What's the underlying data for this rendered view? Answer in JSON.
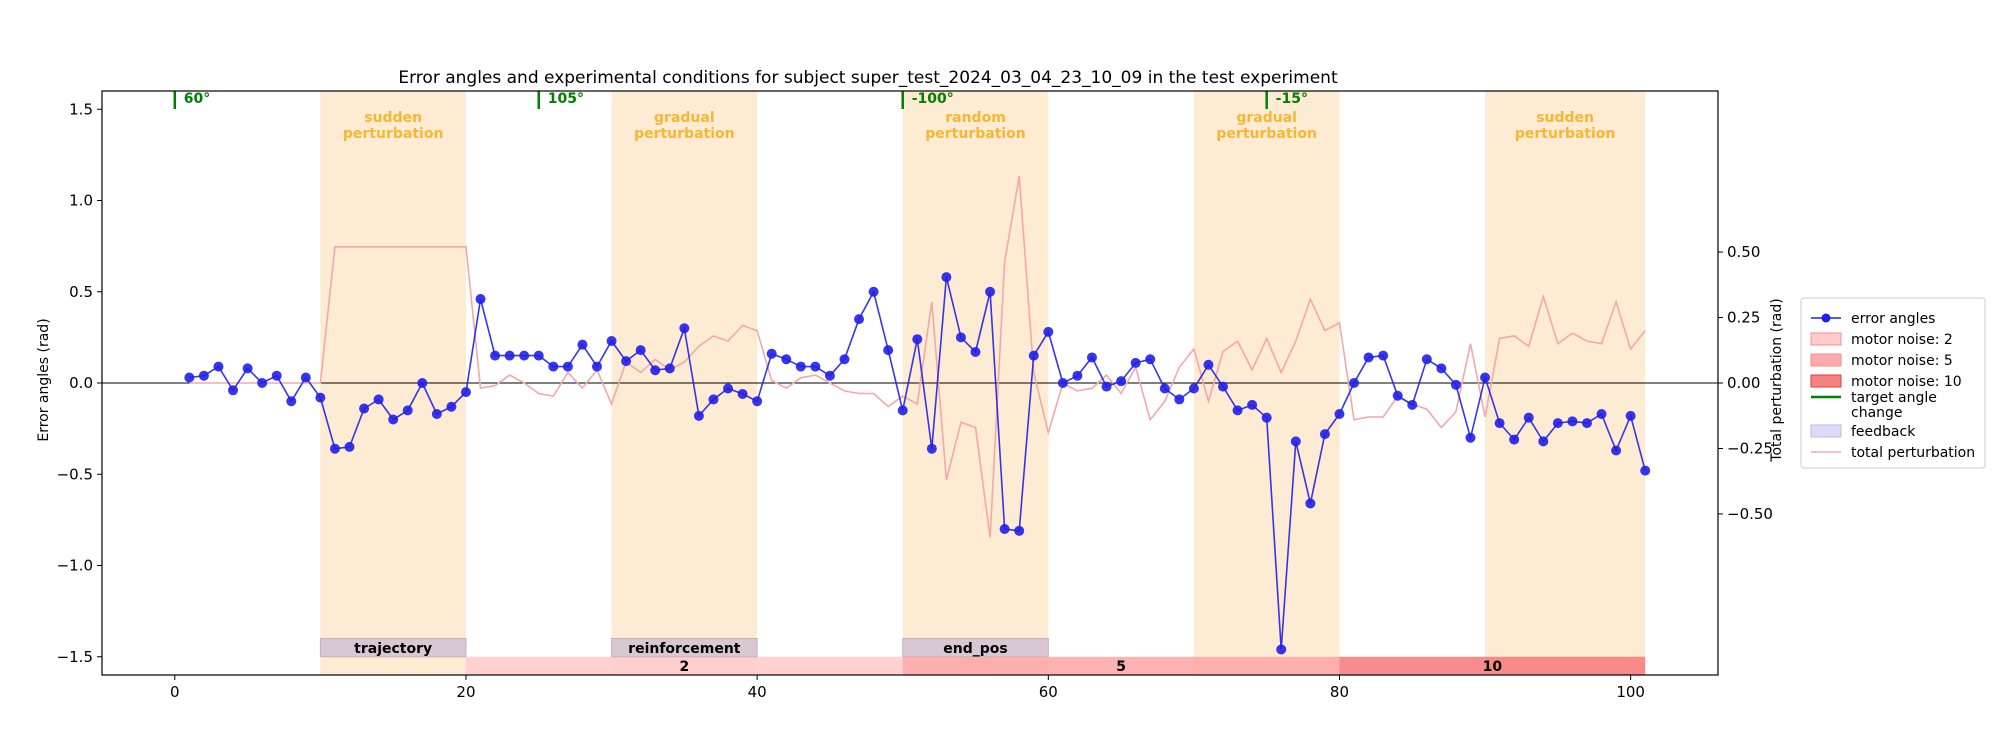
{
  "chart_data": {
    "type": "line",
    "title": "Error angles and experimental conditions for subject super_test_2024_03_04_23_10_09 in the test experiment",
    "xlabel": "",
    "ylabel": "Error angles (rad)",
    "y2label": "Total perturbation (rad)",
    "xlim": [
      -5,
      106
    ],
    "ylim": [
      -1.6,
      1.6
    ],
    "y2lim": [
      -1.115,
      1.115
    ],
    "xticks": [
      0,
      20,
      40,
      60,
      80,
      100
    ],
    "yticks": [
      -1.5,
      -1.0,
      -0.5,
      0.0,
      0.5,
      1.0,
      1.5
    ],
    "y2ticks": [
      -0.5,
      -0.25,
      0.0,
      0.25,
      0.5
    ],
    "grid": false,
    "legend_position": "outside right",
    "colors": {
      "error": "#2020e8",
      "perturbation": "#f4a8a8",
      "perturbation_band": "#fdebd3",
      "perturbation_text": "#f7b733",
      "target": "#008000",
      "feedback_fill": "#d8c8d4",
      "noise2": "#ffcccc",
      "noise5": "#ffaaaa",
      "noise10": "#f78080"
    },
    "series": [
      {
        "name": "error angles",
        "x": [
          1,
          2,
          3,
          4,
          5,
          6,
          7,
          8,
          9,
          10,
          11,
          12,
          13,
          14,
          15,
          16,
          17,
          18,
          19,
          20,
          21,
          22,
          23,
          24,
          25,
          26,
          27,
          28,
          29,
          30,
          31,
          32,
          33,
          34,
          35,
          36,
          37,
          38,
          39,
          40,
          41,
          42,
          43,
          44,
          45,
          46,
          47,
          48,
          49,
          50,
          51,
          52,
          53,
          54,
          55,
          56,
          57,
          58,
          59,
          60,
          61,
          62,
          63,
          64,
          65,
          66,
          67,
          68,
          69,
          70,
          71,
          72,
          73,
          74,
          75,
          76,
          77,
          78,
          79,
          80,
          81,
          82,
          83,
          84,
          85,
          86,
          87,
          88,
          89,
          90,
          91,
          92,
          93,
          94,
          95,
          96,
          97,
          98,
          99,
          100,
          101
        ],
        "values": [
          0.03,
          0.04,
          0.09,
          -0.04,
          0.08,
          0.0,
          0.04,
          -0.1,
          0.03,
          -0.08,
          -0.36,
          -0.35,
          -0.14,
          -0.09,
          -0.2,
          -0.15,
          0.0,
          -0.17,
          -0.13,
          -0.05,
          0.46,
          0.15,
          0.15,
          0.15,
          0.15,
          0.09,
          0.09,
          0.21,
          0.09,
          0.23,
          0.12,
          0.18,
          0.07,
          0.08,
          0.3,
          -0.18,
          -0.09,
          -0.03,
          -0.06,
          -0.1,
          0.16,
          0.13,
          0.09,
          0.09,
          0.04,
          0.13,
          0.35,
          0.5,
          0.18,
          -0.15,
          0.24,
          -0.36,
          0.58,
          0.25,
          0.17,
          0.5,
          -0.8,
          -0.81,
          0.15,
          0.28,
          0.0,
          0.04,
          0.14,
          -0.02,
          0.01,
          0.11,
          0.13,
          -0.03,
          -0.09,
          -0.03,
          0.1,
          -0.02,
          -0.15,
          -0.12,
          -0.19,
          -1.46,
          -0.32,
          -0.66,
          -0.28,
          -0.17,
          0.0,
          0.14,
          0.15,
          -0.07,
          -0.12,
          0.13,
          0.08,
          -0.01,
          -0.3,
          0.03,
          -0.22,
          -0.31,
          -0.19,
          -0.32,
          -0.22,
          -0.21,
          -0.22,
          -0.17,
          -0.37,
          -0.18,
          -0.48
        ]
      },
      {
        "name": "total perturbation",
        "x": [
          1,
          2,
          3,
          4,
          5,
          6,
          7,
          8,
          9,
          10,
          11,
          12,
          13,
          14,
          15,
          16,
          17,
          18,
          19,
          20,
          21,
          22,
          23,
          24,
          25,
          26,
          27,
          28,
          29,
          30,
          31,
          32,
          33,
          34,
          35,
          36,
          37,
          38,
          39,
          40,
          41,
          42,
          43,
          44,
          45,
          46,
          47,
          48,
          49,
          50,
          51,
          52,
          53,
          54,
          55,
          56,
          57,
          58,
          59,
          60,
          61,
          62,
          63,
          64,
          65,
          66,
          67,
          68,
          69,
          70,
          71,
          72,
          73,
          74,
          75,
          76,
          77,
          78,
          79,
          80,
          81,
          82,
          83,
          84,
          85,
          86,
          87,
          88,
          89,
          90,
          91,
          92,
          93,
          94,
          95,
          96,
          97,
          98,
          99,
          100,
          101
        ],
        "values": [
          0,
          0,
          0,
          0,
          0,
          0,
          0,
          0,
          0,
          0,
          0.52,
          0.52,
          0.52,
          0.52,
          0.52,
          0.52,
          0.52,
          0.52,
          0.52,
          0.52,
          -0.02,
          -0.01,
          0.03,
          0.0,
          -0.04,
          -0.05,
          0.04,
          -0.02,
          0.05,
          -0.08,
          0.08,
          0.04,
          0.09,
          0.05,
          0.08,
          0.14,
          0.18,
          0.16,
          0.22,
          0.2,
          0.01,
          -0.02,
          0.02,
          0.03,
          0.0,
          -0.03,
          -0.04,
          -0.04,
          -0.09,
          -0.05,
          -0.08,
          0.31,
          -0.37,
          -0.15,
          -0.17,
          -0.59,
          0.46,
          0.79,
          0.04,
          -0.19,
          0.0,
          -0.03,
          -0.02,
          0.03,
          -0.04,
          0.06,
          -0.14,
          -0.07,
          0.06,
          0.13,
          -0.07,
          0.12,
          0.16,
          0.05,
          0.17,
          0.04,
          0.16,
          0.32,
          0.2,
          0.23,
          -0.14,
          -0.13,
          -0.13,
          -0.05,
          -0.08,
          -0.1,
          -0.17,
          -0.11,
          0.15,
          -0.13,
          0.17,
          0.18,
          0.14,
          0.33,
          0.15,
          0.19,
          0.16,
          0.15,
          0.31,
          0.13,
          0.2
        ]
      }
    ],
    "perturbation_blocks": [
      {
        "start": 10,
        "end": 20,
        "label": "sudden\nperturbation"
      },
      {
        "start": 30,
        "end": 40,
        "label": "gradual\nperturbation"
      },
      {
        "start": 50,
        "end": 60,
        "label": "random\nperturbation"
      },
      {
        "start": 70,
        "end": 80,
        "label": "gradual\nperturbation"
      },
      {
        "start": 90,
        "end": 101,
        "label": "sudden\nperturbation"
      }
    ],
    "target_changes": [
      {
        "x": 0,
        "label": "60°"
      },
      {
        "x": 25,
        "label": "105°"
      },
      {
        "x": 50,
        "label": "-100°"
      },
      {
        "x": 75,
        "label": "-15°"
      }
    ],
    "feedback_blocks": [
      {
        "start": 10,
        "end": 20,
        "label": "trajectory"
      },
      {
        "start": 30,
        "end": 40,
        "label": "reinforcement"
      },
      {
        "start": 50,
        "end": 60,
        "label": "end_pos"
      }
    ],
    "noise_blocks": [
      {
        "start": 20,
        "end": 50,
        "level": "2",
        "label": "2"
      },
      {
        "start": 50,
        "end": 80,
        "level": "5",
        "label": "5"
      },
      {
        "start": 80,
        "end": 101,
        "level": "10",
        "label": "10"
      }
    ],
    "legend": [
      {
        "key": "error",
        "label": "error angles"
      },
      {
        "key": "noise2",
        "label": "motor noise: 2"
      },
      {
        "key": "noise5",
        "label": "motor noise: 5"
      },
      {
        "key": "noise10",
        "label": "motor noise: 10"
      },
      {
        "key": "target",
        "label": "target angle\nchange"
      },
      {
        "key": "feedback",
        "label": "feedback"
      },
      {
        "key": "perturbation",
        "label": "total perturbation"
      }
    ]
  }
}
